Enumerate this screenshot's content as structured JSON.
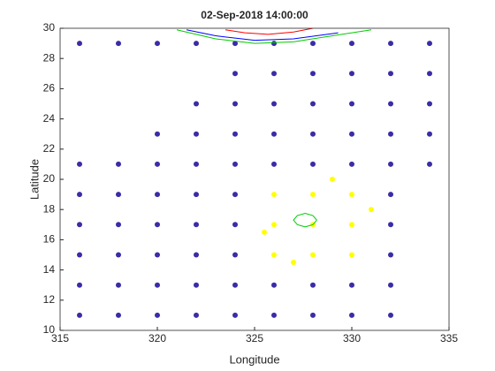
{
  "chart_data": {
    "type": "scatter",
    "title": "02-Sep-2018 14:00:00",
    "x_label": "Longitude",
    "y_label": "Latitude",
    "xlim": [
      315,
      335
    ],
    "xticks": [
      315,
      320,
      325,
      330,
      335
    ],
    "ylim": [
      10,
      30
    ],
    "yticks": [
      10,
      12,
      14,
      16,
      18,
      20,
      22,
      24,
      26,
      28,
      30
    ],
    "series": [
      {
        "color": "#3a2ca6",
        "mode": "markers",
        "x": [
          316,
          318,
          320,
          322,
          324,
          326,
          328,
          330,
          332,
          316,
          318,
          320,
          322,
          324,
          326,
          328,
          330,
          332,
          316,
          318,
          320,
          322,
          324,
          332,
          316,
          318,
          320,
          322,
          324,
          332,
          316,
          318,
          320,
          322,
          324,
          332,
          316,
          318,
          320,
          322,
          324,
          326,
          328,
          330,
          332,
          334,
          320,
          322,
          324,
          326,
          328,
          330,
          332,
          334,
          322,
          324,
          326,
          328,
          330,
          332,
          334,
          324,
          326,
          328,
          330,
          332,
          334,
          316,
          318,
          320,
          322,
          324,
          326,
          328,
          330,
          332,
          334
        ],
        "y": [
          11,
          11,
          11,
          11,
          11,
          11,
          11,
          11,
          11,
          13,
          13,
          13,
          13,
          13,
          13,
          13,
          13,
          13,
          15,
          15,
          15,
          15,
          15,
          15,
          17,
          17,
          17,
          17,
          17,
          17,
          19,
          19,
          19,
          19,
          19,
          19,
          21,
          21,
          21,
          21,
          21,
          21,
          21,
          21,
          21,
          21,
          23,
          23,
          23,
          23,
          23,
          23,
          23,
          23,
          25,
          25,
          25,
          25,
          25,
          25,
          25,
          27,
          27,
          27,
          27,
          27,
          27,
          29,
          29,
          29,
          29,
          29,
          29,
          29,
          29,
          29,
          29
        ]
      },
      {
        "color": "#ffff00",
        "mode": "markers",
        "x": [
          326,
          328,
          330,
          326,
          328,
          330,
          326,
          328,
          330,
          325.5,
          329,
          331,
          327
        ],
        "y": [
          15,
          15,
          15,
          17,
          17,
          17,
          19,
          19,
          19,
          16.5,
          20,
          18,
          14.5
        ]
      },
      {
        "color": "#ff0000",
        "mode": "line",
        "x": [
          323.5,
          324.5,
          325.7,
          327,
          328
        ],
        "y": [
          29.9,
          29.7,
          29.6,
          29.75,
          30
        ]
      },
      {
        "color": "#0000ff",
        "mode": "line",
        "x": [
          321.5,
          323,
          325,
          327,
          329.3
        ],
        "y": [
          29.9,
          29.5,
          29.2,
          29.3,
          29.7
        ]
      },
      {
        "color": "#00cc00",
        "mode": "line",
        "x": [
          321,
          323,
          325,
          327,
          329,
          331
        ],
        "y": [
          29.9,
          29.3,
          29,
          29.1,
          29.5,
          29.9
        ]
      },
      {
        "color": "#00cc00",
        "mode": "line",
        "x": [
          328.2,
          328.0,
          327.6,
          327.2,
          327.0,
          327.2,
          327.6,
          328.0,
          328.2
        ],
        "y": [
          17.3,
          17.6,
          17.75,
          17.6,
          17.3,
          17.0,
          16.85,
          17.0,
          17.3
        ]
      }
    ]
  }
}
